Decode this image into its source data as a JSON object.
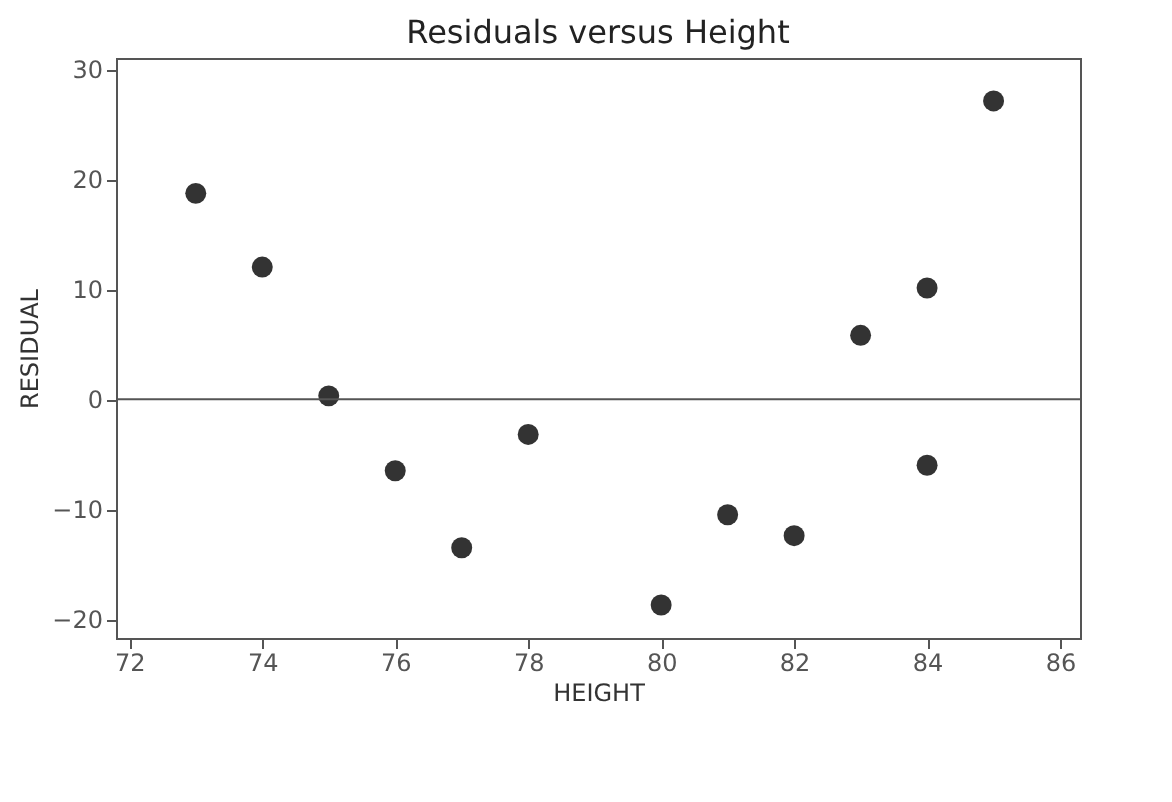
{
  "chart_data": {
    "type": "scatter",
    "title": "Residuals versus Height",
    "xlabel": "HEIGHT",
    "ylabel": "RESIDUAL",
    "x": [
      73,
      74,
      75,
      76,
      77,
      78,
      80,
      81,
      82,
      83,
      84,
      84,
      85
    ],
    "series": [
      {
        "color": "#333333",
        "values": [
          18.7,
          12,
          0.3,
          -6.5,
          -13.5,
          -3.2,
          -18.7,
          -10.5,
          -12.4,
          5.8,
          10.1,
          -6,
          27.1
        ]
      }
    ],
    "xlim": [
      71.8,
      86.3
    ],
    "xticks": [
      72,
      74,
      76,
      78,
      80,
      82,
      84,
      86
    ],
    "ylim": [
      -21.7,
      31
    ],
    "yticks": [
      -20,
      -10,
      0,
      10,
      20,
      30
    ],
    "ref_lines": [
      {
        "axis": "y",
        "value": 0,
        "color": "#555555"
      }
    ],
    "marker": "circle",
    "grid": false,
    "legend": false
  }
}
